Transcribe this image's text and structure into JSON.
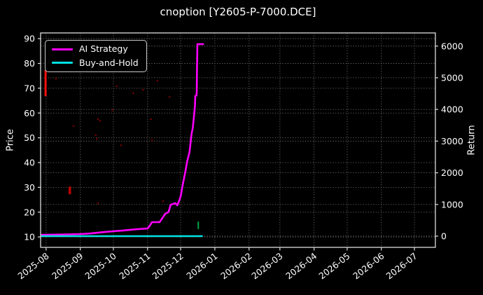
{
  "title": "cnoption [Y2605-P-7000.DCE]",
  "axes": {
    "left": {
      "label": "Price"
    },
    "right": {
      "label": "Return"
    }
  },
  "legend": {
    "items": [
      {
        "label": "AI Strategy",
        "color": "#ff00ff"
      },
      {
        "label": "Buy-and-Hold",
        "color": "#00e0e0"
      }
    ]
  },
  "colors": {
    "background": "#000000",
    "text": "#ffffff",
    "grid": "#6e6e6e",
    "spine": "#dddddd",
    "ai_strategy": "#ff00ff",
    "buy_and_hold": "#00e0e0",
    "sell_marker": "#ff1111",
    "buy_marker": "#00a844",
    "price_speck": "#7d0000"
  },
  "chart_data": {
    "type": "line",
    "title": "cnoption [Y2605-P-7000.DCE]",
    "grid": true,
    "legend_position": "upper left",
    "x_axis": {
      "unit": "days since 2025-08-01",
      "range": [
        -5,
        353
      ],
      "tick_days": [
        0,
        31,
        61,
        92,
        122,
        153,
        184,
        212,
        243,
        273,
        304,
        334
      ],
      "tick_labels": [
        "2025-08",
        "2025-09",
        "2025-10",
        "2025-11",
        "2025-12",
        "2026-01",
        "2026-02",
        "2026-03",
        "2026-04",
        "2026-05",
        "2026-06",
        "2026-07"
      ]
    },
    "y_left": {
      "label": "Price",
      "range": [
        5.8,
        92.3
      ],
      "ticks": [
        10,
        20,
        30,
        40,
        50,
        60,
        70,
        80,
        90
      ]
    },
    "y_right": {
      "label": "Return",
      "range": [
        -354,
        6415
      ],
      "ticks": [
        0,
        1000,
        2000,
        3000,
        4000,
        5000,
        6000
      ]
    },
    "series": [
      {
        "name": "AI Strategy",
        "axis": "right",
        "color": "#ff00ff",
        "width": 2.6,
        "points": [
          [
            -5,
            44
          ],
          [
            0,
            44
          ],
          [
            10,
            48
          ],
          [
            20,
            55
          ],
          [
            31,
            66
          ],
          [
            40,
            85
          ],
          [
            50,
            120
          ],
          [
            61,
            155
          ],
          [
            70,
            180
          ],
          [
            80,
            212
          ],
          [
            92,
            243
          ],
          [
            94,
            330
          ],
          [
            96,
            442
          ],
          [
            103,
            445
          ],
          [
            106,
            600
          ],
          [
            108,
            705
          ],
          [
            111,
            760
          ],
          [
            113,
            990
          ],
          [
            117,
            1040
          ],
          [
            119,
            975
          ],
          [
            121,
            1150
          ],
          [
            122,
            1260
          ],
          [
            124,
            1640
          ],
          [
            126,
            1990
          ],
          [
            128,
            2370
          ],
          [
            130,
            2650
          ],
          [
            131,
            2965
          ],
          [
            132,
            3250
          ],
          [
            133,
            3410
          ],
          [
            134,
            3760
          ],
          [
            135,
            4140
          ],
          [
            135.2,
            4425
          ],
          [
            136.4,
            4440
          ],
          [
            136.6,
            4580
          ],
          [
            136.8,
            5240
          ],
          [
            137.2,
            6060
          ],
          [
            143,
            6060
          ]
        ]
      },
      {
        "name": "Buy-and-Hold",
        "axis": "right",
        "color": "#00e0e0",
        "width": 2.6,
        "points": [
          [
            -5,
            0
          ],
          [
            142,
            0
          ]
        ]
      }
    ],
    "markers": [
      {
        "shape": "vline",
        "axis": "left",
        "color": "#ff1111",
        "t": -0.5,
        "from": 77.3,
        "to": 66.8,
        "w": 3
      },
      {
        "shape": "vline",
        "axis": "left",
        "color": "#bb0000",
        "t": 21.5,
        "from": 30.3,
        "to": 27.2,
        "w": 3.5
      },
      {
        "shape": "vline",
        "axis": "left",
        "color": "#00a844",
        "t": 138,
        "from": 16.2,
        "to": 13.2,
        "w": 2
      }
    ],
    "scatter_specks": {
      "axis": "left",
      "color": "#7d0000",
      "radius": 1.3,
      "points": [
        [
          9,
          73.9
        ],
        [
          25,
          54.7
        ],
        [
          64,
          70.8
        ],
        [
          88,
          69.4
        ],
        [
          79,
          68.0
        ],
        [
          112,
          66.5
        ],
        [
          49,
          56.9
        ],
        [
          60,
          61.2
        ],
        [
          95,
          57.5
        ],
        [
          47,
          57.5
        ],
        [
          45,
          51.0
        ],
        [
          46,
          49.6
        ],
        [
          96,
          49.0
        ],
        [
          68,
          47.0
        ],
        [
          101,
          73.0
        ],
        [
          106,
          24.4
        ],
        [
          47,
          23.6
        ]
      ]
    }
  }
}
